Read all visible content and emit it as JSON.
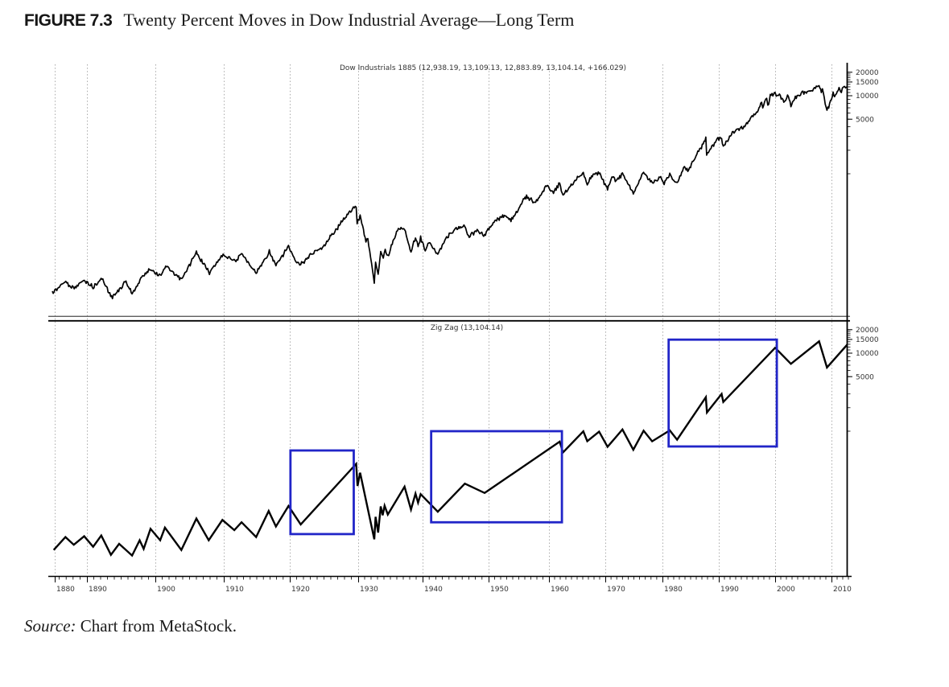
{
  "header": {
    "figure_label": "FIGURE 7.3",
    "title": "Twenty Percent Moves in Dow Industrial Average—Long Term"
  },
  "source": {
    "prefix": "Source:",
    "text": "Chart from MetaStock."
  },
  "colors": {
    "line": "#000000",
    "highlight_box": "#2125c8",
    "grid": "#ababab",
    "axis": "#000000",
    "label_text": "#333333"
  },
  "chart_data": {
    "type": "line",
    "title": "Twenty Percent Moves in Dow Industrial Average—Long Term",
    "x_axis": {
      "tick_labels": [
        [
          "1880",
          68
        ],
        [
          "1890",
          108
        ],
        [
          "1900",
          193
        ],
        [
          "1910",
          278
        ],
        [
          "1920",
          360
        ],
        [
          "1930",
          445
        ],
        [
          "1940",
          525
        ],
        [
          "1950",
          607
        ],
        [
          "1960",
          682
        ],
        [
          "1970",
          752
        ],
        [
          "1980",
          823
        ],
        [
          "1990",
          893
        ],
        [
          "2000",
          963
        ],
        [
          "2010",
          1033
        ]
      ],
      "data_anchors": [
        [
          1885,
          65
        ],
        [
          1890,
          108
        ],
        [
          1900,
          193
        ],
        [
          1910,
          278
        ],
        [
          1920,
          360
        ],
        [
          1930,
          445
        ],
        [
          1940,
          525
        ],
        [
          1950,
          607
        ],
        [
          1960,
          682
        ],
        [
          1970,
          752
        ],
        [
          1980,
          823
        ],
        [
          1990,
          893
        ],
        [
          2000,
          963
        ],
        [
          2010,
          1033
        ],
        [
          2014,
          1061
        ]
      ],
      "range_years": [
        1885,
        2013
      ]
    },
    "panels": [
      {
        "name": "Dow Industrials 1885",
        "label": "Dow Industrials 1885 (12,938.19, 13,109.13, 12,883.89, 13,104.14, +166.029)",
        "scale": "log",
        "y_tick_labels": [
          "20000",
          "15000",
          "10000",
          "5000"
        ],
        "y_label_values": [
          20000,
          15000,
          10000,
          5000
        ],
        "series": [
          [
            1885,
            30
          ],
          [
            1886.8,
            43
          ],
          [
            1887.5,
            38
          ],
          [
            1888.3,
            35
          ],
          [
            1889.5,
            42
          ],
          [
            1890.9,
            34
          ],
          [
            1892.2,
            45
          ],
          [
            1893.6,
            27
          ],
          [
            1894.5,
            32
          ],
          [
            1895.7,
            43
          ],
          [
            1896.6,
            28.5
          ],
          [
            1898,
            45
          ],
          [
            1899.3,
            60
          ],
          [
            1900.7,
            50
          ],
          [
            1901.5,
            68
          ],
          [
            1903.8,
            43
          ],
          [
            1906,
            94
          ],
          [
            1907.9,
            55
          ],
          [
            1909.9,
            97
          ],
          [
            1911.7,
            74
          ],
          [
            1912.7,
            90
          ],
          [
            1914.9,
            54
          ],
          [
            1916.9,
            105
          ],
          [
            1917.9,
            68
          ],
          [
            1919.8,
            115
          ],
          [
            1920.9,
            70
          ],
          [
            1921.6,
            66
          ],
          [
            1923,
            93
          ],
          [
            1924.9,
            120
          ],
          [
            1925.9,
            157
          ],
          [
            1927,
            200
          ],
          [
            1928.5,
            295
          ],
          [
            1929.7,
            381
          ],
          [
            1929.85,
            230
          ],
          [
            1930.3,
            294
          ],
          [
            1931.2,
            140
          ],
          [
            1931.5,
            155
          ],
          [
            1932.5,
            41
          ],
          [
            1932.7,
            79
          ],
          [
            1933.1,
            51
          ],
          [
            1933.5,
            106
          ],
          [
            1933.9,
            86
          ],
          [
            1934.2,
            110
          ],
          [
            1934.6,
            86
          ],
          [
            1936.1,
            184
          ],
          [
            1937.2,
            194
          ],
          [
            1938.2,
            99
          ],
          [
            1938.9,
            158
          ],
          [
            1939.3,
            122
          ],
          [
            1939.7,
            155
          ],
          [
            1940.4,
            112
          ],
          [
            1941.1,
            133
          ],
          [
            1942.3,
            93
          ],
          [
            1943.5,
            145
          ],
          [
            1945.1,
            195
          ],
          [
            1946.4,
            212
          ],
          [
            1946.8,
            165
          ],
          [
            1948.4,
            193
          ],
          [
            1949.4,
            162
          ],
          [
            1950.9,
            235
          ],
          [
            1952.9,
            292
          ],
          [
            1953.7,
            256
          ],
          [
            1955.9,
            488
          ],
          [
            1956.3,
            521
          ],
          [
            1957.8,
            420
          ],
          [
            1959.6,
            679
          ],
          [
            1960.8,
            566
          ],
          [
            1961.9,
            735
          ],
          [
            1962.5,
            536
          ],
          [
            1964.9,
            900
          ],
          [
            1966.1,
            995
          ],
          [
            1966.8,
            744
          ],
          [
            1967.7,
            943
          ],
          [
            1968.9,
            985
          ],
          [
            1970.4,
            631
          ],
          [
            1971.3,
            951
          ],
          [
            1971.9,
            798
          ],
          [
            1973,
            1052
          ],
          [
            1973.6,
            850
          ],
          [
            1974.9,
            578
          ],
          [
            1976.7,
            1015
          ],
          [
            1978.2,
            742
          ],
          [
            1979.7,
            898
          ],
          [
            1980.3,
            759
          ],
          [
            1981.3,
            1024
          ],
          [
            1982.6,
            777
          ],
          [
            1983.9,
            1287
          ],
          [
            1984.5,
            1086
          ],
          [
            1986.6,
            1956
          ],
          [
            1987.7,
            2722
          ],
          [
            1987.85,
            1739
          ],
          [
            1989.7,
            2791
          ],
          [
            1990.5,
            3000
          ],
          [
            1990.8,
            2365
          ],
          [
            1992.4,
            3413
          ],
          [
            1993.9,
            3794
          ],
          [
            1994.3,
            3600
          ],
          [
            1995.9,
            5216
          ],
          [
            1996.4,
            5400
          ],
          [
            1997.6,
            8259
          ],
          [
            1997.8,
            7161
          ],
          [
            1998.5,
            9338
          ],
          [
            1998.7,
            7539
          ],
          [
            1999.3,
            11107
          ],
          [
            1999.6,
            10300
          ],
          [
            2000,
            11723
          ],
          [
            2000.2,
            9900
          ],
          [
            2000.6,
            11000
          ],
          [
            2001.7,
            8236
          ],
          [
            2002.2,
            10635
          ],
          [
            2002.8,
            7286
          ],
          [
            2003.9,
            9900
          ],
          [
            2004.8,
            10500
          ],
          [
            2006,
            11000
          ],
          [
            2007.8,
            14165
          ],
          [
            2008.2,
            11740
          ],
          [
            2008.4,
            12900
          ],
          [
            2009.2,
            6547
          ],
          [
            2010.3,
            11205
          ],
          [
            2010.55,
            9774
          ],
          [
            2011.35,
            12810
          ],
          [
            2011.75,
            10655
          ],
          [
            2012.3,
            13280
          ],
          [
            2012.5,
            12100
          ],
          [
            2012.9,
            13104
          ]
        ]
      },
      {
        "name": "Zig Zag",
        "label": "Zig Zag (13,104.14)",
        "scale": "log",
        "y_tick_labels": [
          "20000",
          "15000",
          "10000",
          "5000"
        ],
        "y_label_values": [
          20000,
          15000,
          10000,
          5000
        ],
        "series": [
          [
            1885.2,
            30
          ],
          [
            1886.9,
            44
          ],
          [
            1888.1,
            35
          ],
          [
            1889.6,
            45
          ],
          [
            1890.9,
            33
          ],
          [
            1892.1,
            46
          ],
          [
            1893.5,
            26
          ],
          [
            1894.7,
            36
          ],
          [
            1896.6,
            25.5
          ],
          [
            1897.7,
            40
          ],
          [
            1898.3,
            31
          ],
          [
            1899.3,
            56
          ],
          [
            1900.7,
            40
          ],
          [
            1901.4,
            58
          ],
          [
            1903.8,
            30
          ],
          [
            1906,
            76
          ],
          [
            1907.8,
            40
          ],
          [
            1909.8,
            73
          ],
          [
            1911.6,
            54
          ],
          [
            1912.7,
            68
          ],
          [
            1914.9,
            44
          ],
          [
            1916.8,
            95
          ],
          [
            1917.9,
            60
          ],
          [
            1919.8,
            110
          ],
          [
            1921.6,
            63.9
          ],
          [
            1929.7,
            381.2
          ],
          [
            1929.9,
            198.7
          ],
          [
            1930.3,
            294.1
          ],
          [
            1932.5,
            41.2
          ],
          [
            1932.7,
            79.9
          ],
          [
            1933.1,
            50.2
          ],
          [
            1933.5,
            108.7
          ],
          [
            1933.8,
            83.6
          ],
          [
            1934.1,
            110.7
          ],
          [
            1934.6,
            85.5
          ],
          [
            1937.2,
            194.4
          ],
          [
            1938.2,
            99
          ],
          [
            1938.9,
            158.4
          ],
          [
            1939.3,
            121.4
          ],
          [
            1939.7,
            155.9
          ],
          [
            1942.3,
            92.9
          ],
          [
            1946.4,
            212.5
          ],
          [
            1949.4,
            161.6
          ],
          [
            1961.9,
            734.9
          ],
          [
            1962.5,
            535.8
          ],
          [
            1966.1,
            995.2
          ],
          [
            1966.8,
            744.3
          ],
          [
            1968.9,
            985.2
          ],
          [
            1970.4,
            631.2
          ],
          [
            1973,
            1051.7
          ],
          [
            1974.9,
            577.6
          ],
          [
            1976.7,
            1014.8
          ],
          [
            1978.2,
            742.1
          ],
          [
            1981.3,
            1024.1
          ],
          [
            1982.6,
            776.9
          ],
          [
            1987.7,
            2722.4
          ],
          [
            1987.9,
            1738.7
          ],
          [
            1990.5,
            2999.8
          ],
          [
            1990.8,
            2365.1
          ],
          [
            2000,
            11723
          ],
          [
            2002.8,
            7286.3
          ],
          [
            2007.8,
            14164.5
          ],
          [
            2009.2,
            6547
          ],
          [
            2012.9,
            13104.1
          ]
        ],
        "highlight_boxes": [
          {
            "x1": 1920.1,
            "x2": 1929.35,
            "v_low": 48,
            "v_high": 566
          },
          {
            "x1": 1941.3,
            "x2": 1962.3,
            "v_low": 68,
            "v_high": 1000
          },
          {
            "x1": 1981.1,
            "x2": 2000.3,
            "v_low": 637,
            "v_high": 14900
          }
        ]
      }
    ]
  }
}
